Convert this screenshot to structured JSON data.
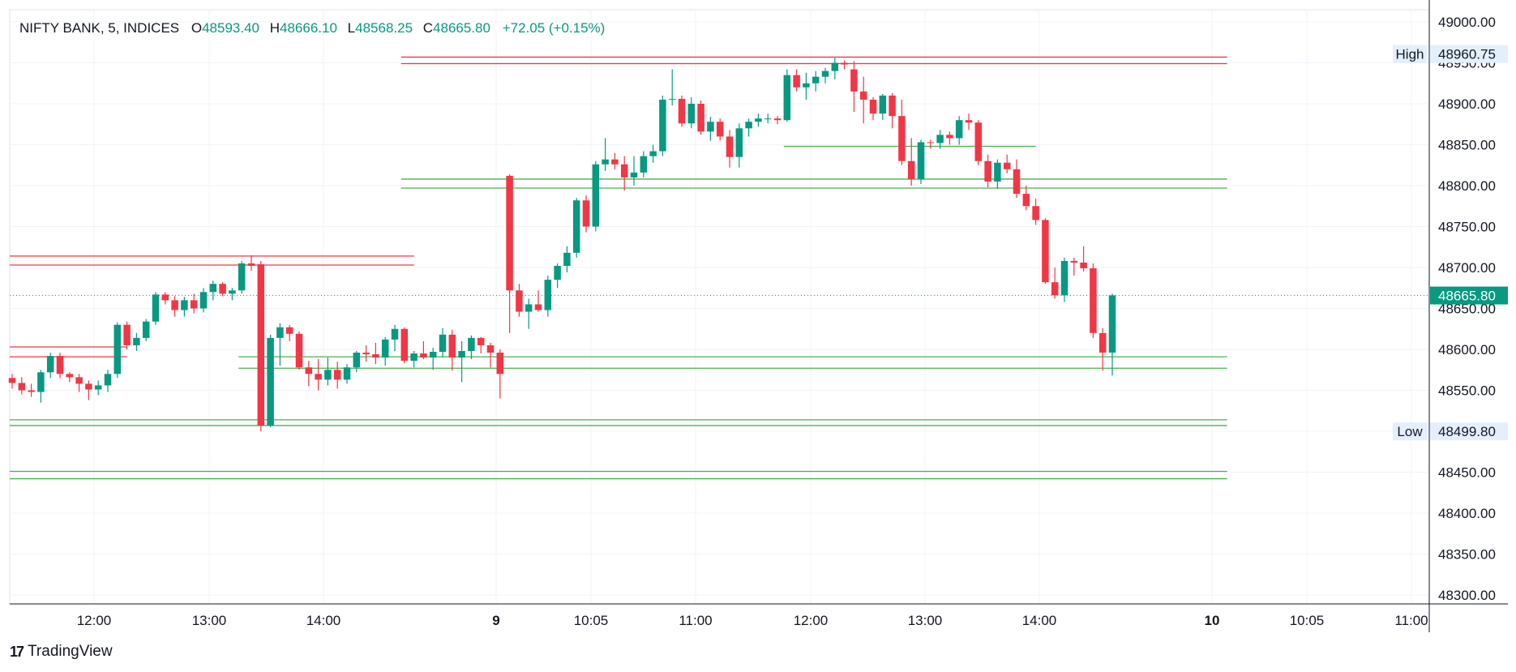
{
  "header": {
    "symbol": "NIFTY BANK, 5, INDICES",
    "open_label": "O",
    "open": "48593.40",
    "high_label": "H",
    "high": "48666.10",
    "low_label": "L",
    "low": "48568.25",
    "close_label": "C",
    "close": "48665.80",
    "change": "+72.05 (+0.15%)"
  },
  "colors": {
    "up": "#089981",
    "down": "#f23645",
    "grid": "#f0f3fa",
    "axis": "#131722",
    "ohlc_value": "#089981",
    "hline_red": "#f23645",
    "hline_green": "#4caf50"
  },
  "brand": {
    "name": "TradingView"
  },
  "chart_data": {
    "type": "candlestick",
    "y_axis": {
      "min": 48280,
      "max": 49015,
      "ticks": [
        "49000.00",
        "48950.00",
        "48900.00",
        "48850.00",
        "48800.00",
        "48750.00",
        "48700.00",
        "48650.00",
        "48600.00",
        "48550.00",
        "48500.00",
        "48450.00",
        "48400.00",
        "48350.00",
        "48300.00"
      ]
    },
    "x_axis": {
      "tick_labels": [
        "12:00",
        "13:00",
        "14:00",
        "9",
        "10:05",
        "11:00",
        "12:00",
        "13:00",
        "14:00",
        "10",
        "10:05",
        "11:00"
      ],
      "bold_labels": [
        "9",
        "10"
      ]
    },
    "price_labels": [
      {
        "text": "High",
        "value": "48960.75",
        "price": 48960.75
      },
      {
        "text": "Low",
        "value": "48499.80",
        "price": 48499.8
      },
      {
        "text": "",
        "value": "48665.80",
        "price": 48665.8,
        "current": true
      }
    ],
    "horizontal_lines": [
      {
        "price": 48957,
        "from": 41,
        "to": 127,
        "color": "red"
      },
      {
        "price": 48949,
        "from": 41,
        "to": 127,
        "color": "red"
      },
      {
        "price": 48714,
        "from": 0,
        "to": 42,
        "color": "red"
      },
      {
        "price": 48703,
        "from": 0,
        "to": 42,
        "color": "red"
      },
      {
        "price": 48603,
        "from": 0,
        "to": 12,
        "color": "red"
      },
      {
        "price": 48591,
        "from": 0,
        "to": 12,
        "color": "red"
      },
      {
        "price": 48848,
        "from": 81,
        "to": 107,
        "color": "green"
      },
      {
        "price": 48808,
        "from": 41,
        "to": 127,
        "color": "green"
      },
      {
        "price": 48797,
        "from": 41,
        "to": 127,
        "color": "green"
      },
      {
        "price": 48591,
        "from": 24,
        "to": 127,
        "color": "green"
      },
      {
        "price": 48577,
        "from": 24,
        "to": 127,
        "color": "green"
      },
      {
        "price": 48514,
        "from": 0,
        "to": 127,
        "color": "green"
      },
      {
        "price": 48507,
        "from": 0,
        "to": 127,
        "color": "green"
      },
      {
        "price": 48451,
        "from": 0,
        "to": 127,
        "color": "green"
      },
      {
        "price": 48442,
        "from": 0,
        "to": 127,
        "color": "green"
      }
    ],
    "candles": [
      [
        48565,
        48570,
        48552,
        48559
      ],
      [
        48559,
        48566,
        48545,
        48550
      ],
      [
        48550,
        48558,
        48542,
        48548
      ],
      [
        48548,
        48575,
        48535,
        48572
      ],
      [
        48572,
        48596,
        48565,
        48592
      ],
      [
        48592,
        48596,
        48565,
        48570
      ],
      [
        48570,
        48572,
        48560,
        48566
      ],
      [
        48566,
        48570,
        48548,
        48558
      ],
      [
        48558,
        48562,
        48538,
        48551
      ],
      [
        48551,
        48562,
        48544,
        48556
      ],
      [
        48556,
        48575,
        48548,
        48570
      ],
      [
        48570,
        48633,
        48565,
        48630
      ],
      [
        48630,
        48634,
        48600,
        48605
      ],
      [
        48605,
        48620,
        48598,
        48614
      ],
      [
        48614,
        48637,
        48610,
        48634
      ],
      [
        48634,
        48670,
        48630,
        48667
      ],
      [
        48667,
        48670,
        48655,
        48660
      ],
      [
        48660,
        48665,
        48640,
        48648
      ],
      [
        48648,
        48664,
        48640,
        48660
      ],
      [
        48660,
        48668,
        48644,
        48650
      ],
      [
        48650,
        48675,
        48645,
        48670
      ],
      [
        48670,
        48684,
        48660,
        48680
      ],
      [
        48680,
        48682,
        48665,
        48668
      ],
      [
        48668,
        48675,
        48660,
        48672
      ],
      [
        48672,
        48708,
        48668,
        48705
      ],
      [
        48705,
        48715,
        48696,
        48702
      ],
      [
        48704,
        48708,
        48500,
        48507
      ],
      [
        48507,
        48618,
        48505,
        48614
      ],
      [
        48614,
        48632,
        48580,
        48627
      ],
      [
        48627,
        48630,
        48610,
        48619
      ],
      [
        48619,
        48622,
        48575,
        48578
      ],
      [
        48578,
        48586,
        48555,
        48570
      ],
      [
        48570,
        48588,
        48550,
        48563
      ],
      [
        48563,
        48590,
        48556,
        48575
      ],
      [
        48575,
        48585,
        48552,
        48563
      ],
      [
        48563,
        48582,
        48558,
        48578
      ],
      [
        48578,
        48598,
        48572,
        48596
      ],
      [
        48596,
        48605,
        48585,
        48594
      ],
      [
        48594,
        48608,
        48582,
        48590
      ],
      [
        48590,
        48615,
        48580,
        48612
      ],
      [
        48612,
        48630,
        48598,
        48625
      ],
      [
        48625,
        48627,
        48583,
        48586
      ],
      [
        48586,
        48598,
        48578,
        48595
      ],
      [
        48595,
        48610,
        48588,
        48590
      ],
      [
        48590,
        48602,
        48575,
        48597
      ],
      [
        48597,
        48626,
        48590,
        48618
      ],
      [
        48618,
        48624,
        48574,
        48590
      ],
      [
        48590,
        48610,
        48560,
        48598
      ],
      [
        48598,
        48617,
        48588,
        48614
      ],
      [
        48614,
        48615,
        48595,
        48605
      ],
      [
        48605,
        48608,
        48578,
        48596
      ],
      [
        48596,
        48600,
        48540,
        48570
      ],
      [
        48812,
        48814,
        48620,
        48672
      ],
      [
        48672,
        48680,
        48640,
        48646
      ],
      [
        48646,
        48662,
        48625,
        48655
      ],
      [
        48655,
        48672,
        48646,
        48648
      ],
      [
        48648,
        48690,
        48640,
        48685
      ],
      [
        48685,
        48705,
        48675,
        48702
      ],
      [
        48702,
        48726,
        48694,
        48718
      ],
      [
        48718,
        48785,
        48712,
        48782
      ],
      [
        48782,
        48788,
        48743,
        48750
      ],
      [
        48750,
        48830,
        48744,
        48826
      ],
      [
        48826,
        48858,
        48818,
        48832
      ],
      [
        48832,
        48840,
        48820,
        48826
      ],
      [
        48826,
        48836,
        48794,
        48810
      ],
      [
        48810,
        48836,
        48800,
        48816
      ],
      [
        48816,
        48842,
        48810,
        48836
      ],
      [
        48836,
        48850,
        48828,
        48842
      ],
      [
        48842,
        48910,
        48836,
        48905
      ],
      [
        48905,
        48942,
        48898,
        48906
      ],
      [
        48906,
        48910,
        48872,
        48876
      ],
      [
        48876,
        48908,
        48870,
        48900
      ],
      [
        48900,
        48904,
        48862,
        48866
      ],
      [
        48866,
        48884,
        48855,
        48878
      ],
      [
        48878,
        48882,
        48855,
        48860
      ],
      [
        48860,
        48868,
        48822,
        48835
      ],
      [
        48835,
        48876,
        48822,
        48870
      ],
      [
        48870,
        48882,
        48860,
        48878
      ],
      [
        48878,
        48888,
        48872,
        48882
      ],
      [
        48882,
        48888,
        48876,
        48882
      ],
      [
        48882,
        48885,
        48875,
        48880
      ],
      [
        48880,
        48942,
        48878,
        48935
      ],
      [
        48935,
        48942,
        48915,
        48920
      ],
      [
        48920,
        48938,
        48905,
        48925
      ],
      [
        48925,
        48940,
        48915,
        48933
      ],
      [
        48933,
        48944,
        48925,
        48940
      ],
      [
        48940,
        48956,
        48930,
        48950
      ],
      [
        48950,
        48953,
        48942,
        48948
      ],
      [
        48942,
        48952,
        48890,
        48915
      ],
      [
        48915,
        48933,
        48876,
        48905
      ],
      [
        48905,
        48908,
        48880,
        48888
      ],
      [
        48888,
        48912,
        48880,
        48910
      ],
      [
        48910,
        48913,
        48870,
        48885
      ],
      [
        48885,
        48905,
        48825,
        48830
      ],
      [
        48830,
        48858,
        48800,
        48808
      ],
      [
        48808,
        48856,
        48802,
        48853
      ],
      [
        48853,
        48856,
        48845,
        48852
      ],
      [
        48852,
        48868,
        48845,
        48862
      ],
      [
        48862,
        48866,
        48850,
        48858
      ],
      [
        48858,
        48885,
        48850,
        48880
      ],
      [
        48880,
        48888,
        48868,
        48877
      ],
      [
        48877,
        48880,
        48825,
        48830
      ],
      [
        48830,
        48838,
        48798,
        48805
      ],
      [
        48805,
        48832,
        48796,
        48828
      ],
      [
        48828,
        48838,
        48815,
        48820
      ],
      [
        48820,
        48832,
        48785,
        48790
      ],
      [
        48790,
        48800,
        48770,
        48775
      ],
      [
        48775,
        48784,
        48752,
        48758
      ],
      [
        48758,
        48760,
        48680,
        48682
      ],
      [
        48682,
        48700,
        48662,
        48666
      ],
      [
        48666,
        48712,
        48658,
        48708
      ],
      [
        48708,
        48712,
        48690,
        48706
      ],
      [
        48706,
        48726,
        48695,
        48699
      ],
      [
        48699,
        48705,
        48614,
        48620
      ],
      [
        48620,
        48626,
        48574,
        48596
      ],
      [
        48596,
        48668,
        48568,
        48666
      ]
    ]
  }
}
